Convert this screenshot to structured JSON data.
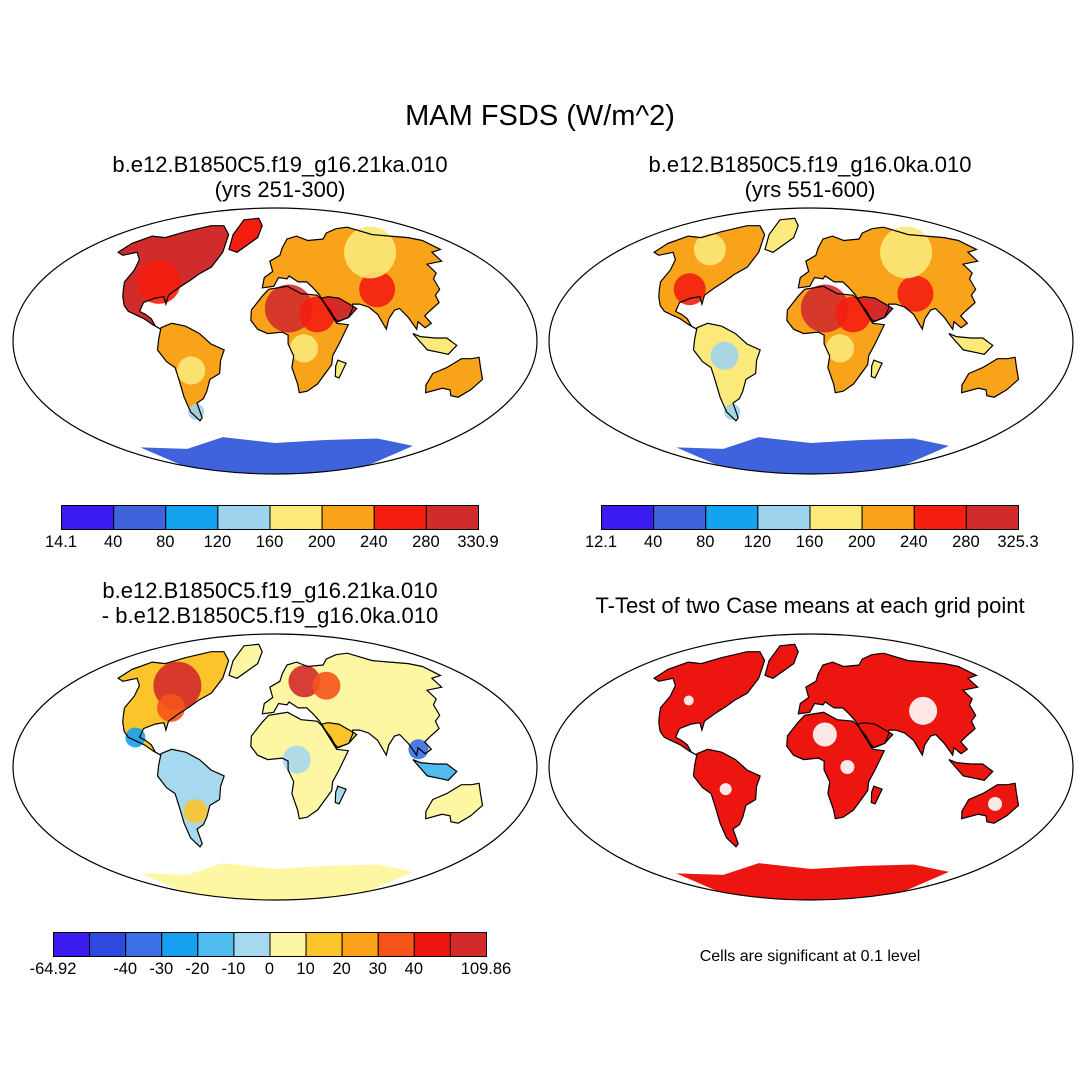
{
  "title": "MAM FSDS (W/m^2)",
  "panels": [
    {
      "id": "case1",
      "title_line1": "b.e12.B1850C5.f19_g16.21ka.010",
      "title_line2": "(yrs 251-300)",
      "colorbar": {
        "colors": [
          "#3a1cf0",
          "#3f63dc",
          "#13a3ef",
          "#9dd3ec",
          "#fbe97a",
          "#f9a31a",
          "#f31e10",
          "#d12c2c"
        ],
        "labels": [
          "14.1",
          "40",
          "80",
          "120",
          "160",
          "200",
          "240",
          "280",
          "330.9"
        ]
      }
    },
    {
      "id": "case2",
      "title_line1": "b.e12.B1850C5.f19_g16.0ka.010",
      "title_line2": "(yrs 551-600)",
      "colorbar": {
        "colors": [
          "#3a1cf0",
          "#3f63dc",
          "#13a3ef",
          "#9dd3ec",
          "#fbe97a",
          "#f9a31a",
          "#f31e10",
          "#d12c2c"
        ],
        "labels": [
          "12.1",
          "40",
          "80",
          "120",
          "160",
          "200",
          "240",
          "280",
          "325.3"
        ]
      }
    },
    {
      "id": "difference",
      "title_line1": "b.e12.B1850C5.f19_g16.21ka.010",
      "title_line2": "- b.e12.B1850C5.f19_g16.0ka.010",
      "colorbar": {
        "colors": [
          "#3a1cf0",
          "#2e48e0",
          "#3a6fe6",
          "#16a0ef",
          "#4fbbee",
          "#a6d8ee",
          "#fdf6a2",
          "#fcc42b",
          "#f9a21a",
          "#f5541a",
          "#ec1510",
          "#d32a2a"
        ],
        "labels": [
          "-64.92",
          "",
          "-40",
          "-30",
          "-20",
          "-10",
          "0",
          "10",
          "20",
          "30",
          "40",
          "",
          "109.86"
        ]
      }
    },
    {
      "id": "ttest",
      "title_line1": "T-Test of two Case means at each grid point",
      "note": "Cells are significant at 0.1 level"
    }
  ]
}
